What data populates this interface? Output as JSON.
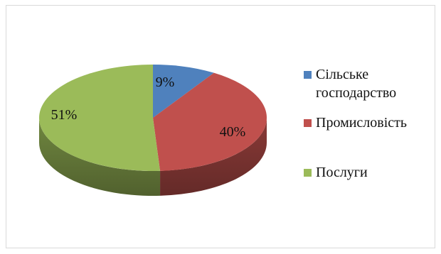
{
  "chart_data": {
    "type": "pie",
    "style": "3d",
    "categories": [
      "Сільське\nгосподарство",
      "Промисловість",
      "Послуги"
    ],
    "values": [
      9,
      40,
      51
    ],
    "data_labels": [
      "9%",
      "40%",
      "51%"
    ],
    "colors": [
      "#4f81bd",
      "#c0504d",
      "#9bbb59"
    ],
    "legend_placement": "right"
  }
}
